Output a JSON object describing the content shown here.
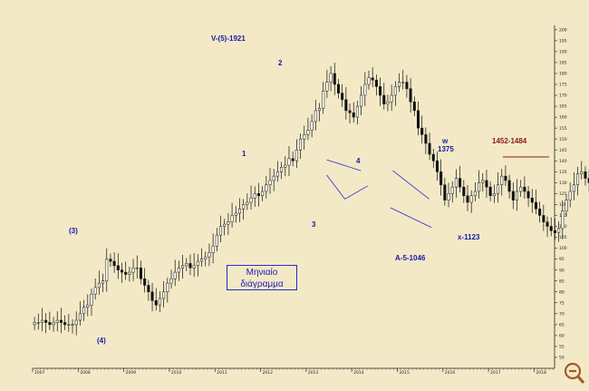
{
  "chart_data": {
    "type": "candlestick",
    "title": "",
    "xlabel": "",
    "ylabel": "",
    "ylim": [
      45,
      202
    ],
    "y_ticks": [
      50,
      55,
      60,
      65,
      70,
      75,
      80,
      85,
      90,
      95,
      100,
      105,
      110,
      115,
      120,
      125,
      130,
      135,
      140,
      145,
      150,
      155,
      160,
      165,
      170,
      175,
      180,
      185,
      190,
      195,
      200
    ],
    "x_ticks": [
      "2007",
      "2008",
      "2009",
      "2010",
      "2011",
      "2012",
      "2013",
      "2014",
      "2015",
      "2016",
      "2017",
      "2018"
    ],
    "x_start": 2007.0,
    "x_end": 2018.45,
    "monthly_close": [
      66,
      66,
      67,
      66,
      65,
      66,
      67,
      66,
      65,
      65,
      65,
      67,
      70,
      73,
      74,
      79,
      82,
      84,
      85,
      95,
      94,
      92,
      90,
      89,
      88,
      89,
      91,
      91,
      86,
      83,
      80,
      76,
      74,
      77,
      80,
      84,
      86,
      89,
      91,
      92,
      93,
      91,
      92,
      94,
      95,
      96,
      98,
      101,
      106,
      110,
      111,
      112,
      115,
      116,
      118,
      120,
      121,
      123,
      125,
      124,
      126,
      129,
      131,
      133,
      135,
      137,
      138,
      141,
      140,
      145,
      150,
      152,
      154,
      158,
      163,
      164,
      172,
      176,
      180,
      175,
      171,
      168,
      163,
      162,
      160,
      165,
      170,
      175,
      178,
      177,
      174,
      170,
      166,
      167,
      170,
      174,
      176,
      176,
      173,
      167,
      163,
      155,
      152,
      148,
      143,
      140,
      135,
      129,
      122,
      125,
      128,
      132,
      128,
      124,
      121,
      124,
      126,
      130,
      131,
      128,
      124,
      125,
      129,
      133,
      131,
      126,
      122,
      126,
      128,
      126,
      123,
      121,
      118,
      115,
      112,
      110,
      108,
      107,
      109,
      117,
      122,
      126,
      129,
      134,
      135,
      132,
      130,
      127,
      122,
      117,
      115,
      120,
      125,
      128,
      126,
      127,
      129,
      131,
      132,
      128,
      130,
      131,
      129,
      127
    ]
  },
  "annotations": {
    "wave_v5": "V-(5)-1921",
    "wave_2": "2",
    "wave_1": "1",
    "wave_3_paren": "(3)",
    "wave_4_paren": "(4)",
    "wave_3": "3",
    "wave_4": "4",
    "wave_w": "w",
    "wave_w_value": "1375",
    "wave_a5": "A-5-1046",
    "wave_x": "x-1123",
    "target_range": "1452-1484"
  },
  "label_box": {
    "line1": "Μηνιαίο",
    "line2": "διάγραμμα"
  },
  "colors": {
    "background": "#f3e9c6",
    "candle": "#111111",
    "annotation": "#1a1aa8",
    "target": "#8b1a1a",
    "triangle": "#2a2acc"
  },
  "icons": {
    "zoom": "magnify-minus-icon"
  }
}
